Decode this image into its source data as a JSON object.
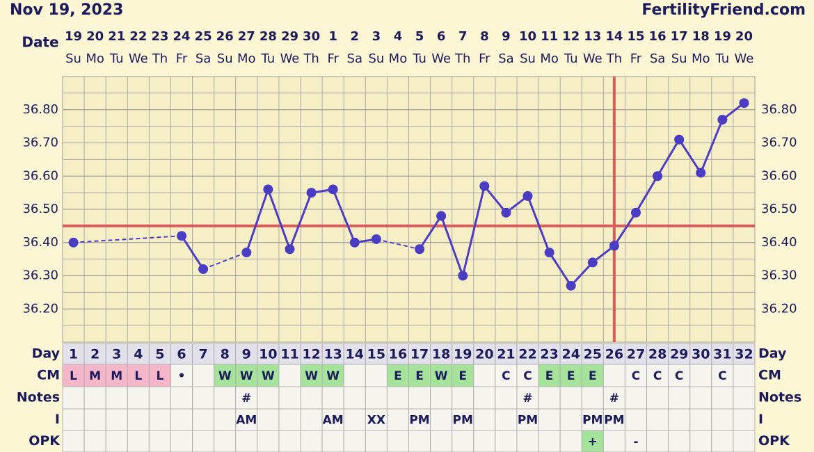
{
  "chart_data": {
    "type": "line",
    "title": "Nov 19, 2023",
    "site": "FertilityFriend.com",
    "date_label": "Date",
    "dates": [
      19,
      20,
      21,
      22,
      23,
      24,
      25,
      26,
      27,
      28,
      29,
      30,
      1,
      2,
      3,
      4,
      5,
      6,
      7,
      8,
      9,
      10,
      11,
      12,
      13,
      14,
      15,
      16,
      17,
      18,
      19,
      20
    ],
    "weekdays": [
      "Su",
      "Mo",
      "Tu",
      "We",
      "Th",
      "Fr",
      "Sa",
      "Su",
      "Mo",
      "Tu",
      "We",
      "Th",
      "Fr",
      "Sa",
      "Su",
      "Mo",
      "Tu",
      "We",
      "Th",
      "Fr",
      "Sa",
      "Su",
      "Mo",
      "Tu",
      "We",
      "Th",
      "Fr",
      "Sa",
      "Su",
      "Mo",
      "Tu",
      "We"
    ],
    "categories": [
      1,
      2,
      3,
      4,
      5,
      6,
      7,
      8,
      9,
      10,
      11,
      12,
      13,
      14,
      15,
      16,
      17,
      18,
      19,
      20,
      21,
      22,
      23,
      24,
      25,
      26,
      27,
      28,
      29,
      30,
      31,
      32
    ],
    "values": [
      36.4,
      null,
      null,
      null,
      null,
      36.42,
      36.32,
      null,
      36.37,
      36.56,
      36.38,
      36.55,
      36.56,
      36.4,
      36.41,
      null,
      36.38,
      36.48,
      36.3,
      36.57,
      36.49,
      36.54,
      36.37,
      36.27,
      36.34,
      36.39,
      36.49,
      36.6,
      36.71,
      36.61,
      36.77,
      36.82
    ],
    "color": "#4b3cc4",
    "ylim": [
      36.1,
      36.9
    ],
    "yticks": [
      {
        "value": 36.2,
        "label": "36.20"
      },
      {
        "value": 36.3,
        "label": "36.30"
      },
      {
        "value": 36.4,
        "label": "36.40"
      },
      {
        "value": 36.5,
        "label": "36.50"
      },
      {
        "value": 36.6,
        "label": "36.60"
      },
      {
        "value": 36.7,
        "label": "36.70"
      },
      {
        "value": 36.8,
        "label": "36.80"
      }
    ],
    "grid": true,
    "minor_grid_step": 0.05,
    "coverline": 36.45,
    "ovulation_day": 26,
    "marker_color": "#e05a5a"
  },
  "table": {
    "row_labels": [
      "Day",
      "CM",
      "Notes",
      "I",
      "OPK"
    ],
    "cm": [
      "L",
      "M",
      "M",
      "L",
      "L",
      "•",
      null,
      "W",
      "W",
      "W",
      null,
      "W",
      "W",
      null,
      null,
      "E",
      "E",
      "W",
      "E",
      null,
      "C",
      "C",
      "E",
      "E",
      "E",
      null,
      "C",
      "C",
      "C",
      null,
      "C",
      null
    ],
    "cm_colors": {
      "L": "#f4b6c8",
      "M": "#f4b6c8",
      "W": "#a5e39a",
      "E": "#a5e39a"
    },
    "notes": [
      null,
      null,
      null,
      null,
      null,
      null,
      null,
      null,
      "#",
      null,
      null,
      null,
      null,
      null,
      null,
      null,
      null,
      null,
      null,
      null,
      null,
      "#",
      null,
      null,
      null,
      "#",
      null,
      null,
      null,
      null,
      null,
      null
    ],
    "intercourse": [
      null,
      null,
      null,
      null,
      null,
      null,
      null,
      null,
      "AM",
      null,
      null,
      null,
      "AM",
      null,
      "XX",
      null,
      "PM",
      null,
      "PM",
      null,
      null,
      "PM",
      null,
      null,
      "PM",
      "PM",
      null,
      null,
      null,
      null,
      null,
      null
    ],
    "opk": [
      null,
      null,
      null,
      null,
      null,
      null,
      null,
      null,
      null,
      null,
      null,
      null,
      null,
      null,
      null,
      null,
      null,
      null,
      null,
      null,
      null,
      null,
      null,
      null,
      "+",
      null,
      "-",
      null,
      null,
      null,
      null,
      null
    ],
    "opk_colors": {
      "+": "#a5e39a"
    }
  }
}
